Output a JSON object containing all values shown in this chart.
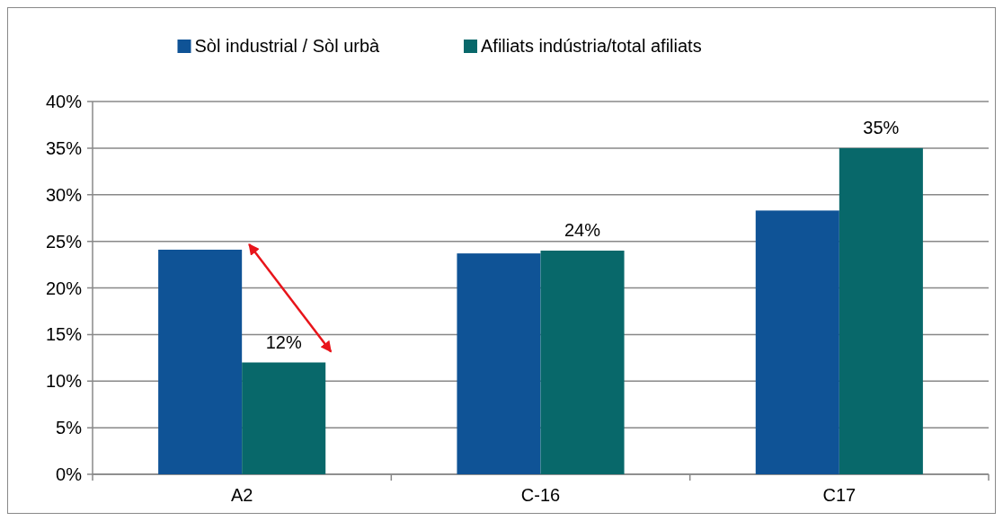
{
  "chart_data": {
    "type": "bar",
    "categories": [
      "A2",
      "C-16",
      "C17"
    ],
    "series": [
      {
        "name": "Sòl industrial / Sòl urbà",
        "color": "#0f5396",
        "values": [
          24.1,
          23.7,
          28.3
        ]
      },
      {
        "name": "Afiliats indústria/total afiliats",
        "color": "#08686a",
        "values": [
          12,
          24,
          35
        ],
        "value_labels": [
          "12%",
          "24%",
          "35%"
        ]
      }
    ],
    "ylim": [
      0,
      40
    ],
    "yticks": [
      {
        "value": 0,
        "label": "0%"
      },
      {
        "value": 5,
        "label": "5%"
      },
      {
        "value": 10,
        "label": "10%"
      },
      {
        "value": 15,
        "label": "15%"
      },
      {
        "value": 20,
        "label": "20%"
      },
      {
        "value": 25,
        "label": "25%"
      },
      {
        "value": 30,
        "label": "30%"
      },
      {
        "value": 35,
        "label": "35%"
      },
      {
        "value": 40,
        "label": "40%"
      }
    ],
    "grid": "y",
    "legend": "top"
  }
}
